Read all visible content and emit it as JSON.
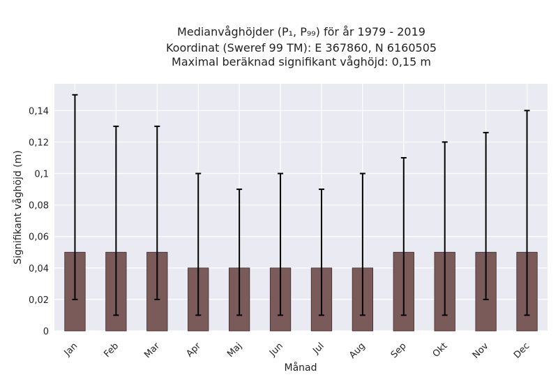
{
  "chart_data": {
    "type": "bar",
    "title_lines": [
      "Medianvåghöjder (P₁, P₉₉) för år 1979 - 2019",
      "Koordinat (Sweref 99 TM): E 367860, N 6160505",
      "Maximal beräknad signifikant våghöjd: 0,15 m"
    ],
    "xlabel": "Månad",
    "ylabel": "Signifikant våghöjd (m)",
    "categories": [
      "Jan",
      "Feb",
      "Mar",
      "Apr",
      "Maj",
      "Jun",
      "Jul",
      "Aug",
      "Sep",
      "Okt",
      "Nov",
      "Dec"
    ],
    "values": [
      0.05,
      0.05,
      0.05,
      0.04,
      0.04,
      0.04,
      0.04,
      0.04,
      0.05,
      0.05,
      0.05,
      0.05
    ],
    "error_low": [
      0.02,
      0.01,
      0.02,
      0.01,
      0.01,
      0.01,
      0.01,
      0.01,
      0.01,
      0.01,
      0.02,
      0.01
    ],
    "error_high": [
      0.15,
      0.13,
      0.13,
      0.1,
      0.09,
      0.1,
      0.09,
      0.1,
      0.11,
      0.12,
      0.126,
      0.14
    ],
    "ylim": [
      0,
      0.157
    ],
    "yticks": [
      0,
      0.02,
      0.04,
      0.06,
      0.08,
      0.1,
      0.12,
      0.14
    ],
    "ytick_labels": [
      "0",
      "0,02",
      "0,04",
      "0,06",
      "0,08",
      "0,1",
      "0,12",
      "0,14"
    ],
    "grid": true,
    "colors": {
      "bar": "#7b5a5a",
      "bar_edge": "#3a2a2a",
      "plot_bg": "#eaeaf2",
      "grid": "#ffffff",
      "error": "#000000"
    }
  }
}
